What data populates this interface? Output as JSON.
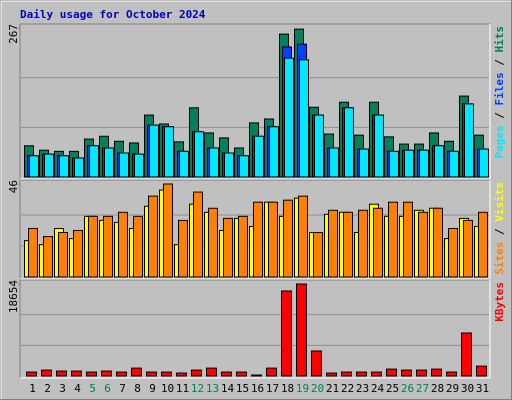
{
  "chart_data": [
    {
      "type": "bar",
      "title": "Daily usage for October 2024",
      "title_color": "#0000c0",
      "ylim": [
        0,
        267
      ],
      "yticks": [
        267
      ],
      "legend_separator": "/",
      "series": [
        {
          "name": "Hits",
          "color": "#00805c",
          "values": [
            56,
            48,
            46,
            46,
            68,
            73,
            64,
            61,
            111,
            95,
            63,
            124,
            79,
            70,
            52,
            97,
            104,
            256,
            265,
            125,
            77,
            134,
            75,
            134,
            72,
            59,
            59,
            79,
            64,
            145,
            75
          ]
        },
        {
          "name": "Files",
          "color": "#0040ff",
          "values": [
            38,
            41,
            38,
            34,
            56,
            52,
            43,
            41,
            93,
            90,
            46,
            81,
            52,
            43,
            38,
            73,
            90,
            233,
            238,
            111,
            52,
            124,
            50,
            111,
            46,
            48,
            48,
            56,
            46,
            131,
            50
          ]
        },
        {
          "name": "Pages",
          "color": "#00e8ff",
          "values": [
            38,
            41,
            38,
            34,
            56,
            52,
            43,
            41,
            93,
            90,
            46,
            81,
            52,
            43,
            38,
            73,
            90,
            213,
            210,
            111,
            52,
            124,
            50,
            111,
            46,
            48,
            48,
            56,
            46,
            131,
            50
          ]
        }
      ]
    },
    {
      "type": "bar",
      "ylim": [
        0,
        46
      ],
      "yticks": [
        46
      ],
      "legend_separator": "/",
      "series": [
        {
          "name": "Visits",
          "color": "#ffff00",
          "values": [
            18,
            16,
            24,
            19,
            30,
            28,
            27,
            24,
            35,
            43,
            16,
            36,
            32,
            23,
            29,
            25,
            37,
            30,
            39,
            22,
            31,
            32,
            22,
            36,
            30,
            30,
            33,
            34,
            19,
            29,
            25
          ]
        },
        {
          "name": "Sites",
          "color": "#ff8000",
          "values": [
            24,
            20,
            22,
            23,
            30,
            30,
            32,
            30,
            40,
            46,
            28,
            42,
            34,
            29,
            30,
            37,
            37,
            38,
            40,
            22,
            33,
            32,
            33,
            34,
            37,
            37,
            32,
            34,
            24,
            28,
            32
          ]
        }
      ]
    },
    {
      "type": "bar",
      "ylim": [
        0,
        18654
      ],
      "yticks": [
        18654
      ],
      "categories": [
        "1",
        "2",
        "3",
        "4",
        "5",
        "6",
        "7",
        "8",
        "9",
        "10",
        "11",
        "12",
        "13",
        "14",
        "15",
        "16",
        "17",
        "18",
        "19",
        "20",
        "21",
        "22",
        "23",
        "24",
        "25",
        "26",
        "27",
        "28",
        "29",
        "30",
        "31"
      ],
      "category_colors": [
        "#000000",
        "#000000",
        "#000000",
        "#000000",
        "#00805c",
        "#00805c",
        "#000000",
        "#000000",
        "#000000",
        "#000000",
        "#000000",
        "#00805c",
        "#00805c",
        "#000000",
        "#000000",
        "#000000",
        "#000000",
        "#000000",
        "#00805c",
        "#00805c",
        "#000000",
        "#000000",
        "#000000",
        "#000000",
        "#000000",
        "#00805c",
        "#00805c",
        "#000000",
        "#000000",
        "#000000",
        "#000000"
      ],
      "series": [
        {
          "name": "KBytes",
          "color": "#ff0000",
          "values": [
            800,
            1200,
            1000,
            1000,
            800,
            1000,
            800,
            1600,
            800,
            800,
            600,
            1200,
            1600,
            800,
            800,
            200,
            1600,
            17240,
            18654,
            5070,
            600,
            800,
            800,
            800,
            1400,
            1200,
            1200,
            1400,
            800,
            8720,
            2000
          ]
        }
      ]
    }
  ]
}
